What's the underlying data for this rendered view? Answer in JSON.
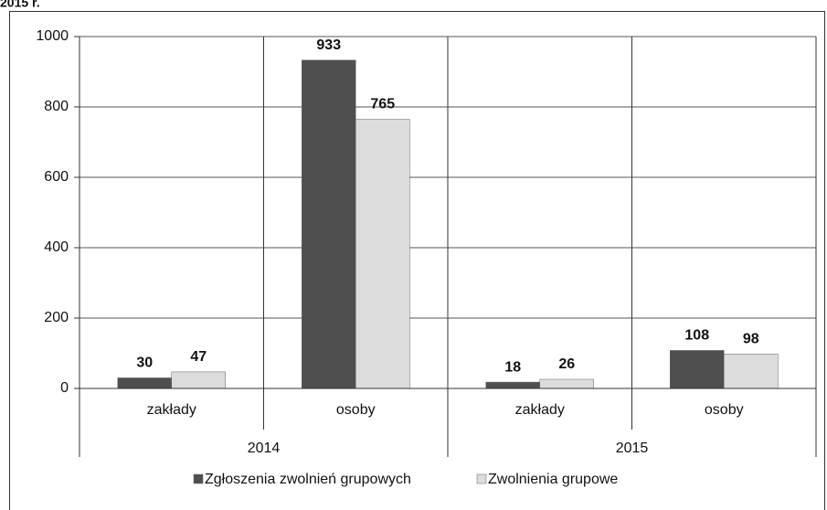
{
  "chart_data": {
    "type": "bar",
    "title": "2015 r.",
    "categories": [
      "zakłady",
      "osoby",
      "zakłady",
      "osoby"
    ],
    "groups": [
      "2014",
      "2015"
    ],
    "series": [
      {
        "name": "Zgłoszenia zwolnień grupowych",
        "color": "#4f4f4f",
        "values": [
          30,
          933,
          18,
          108
        ]
      },
      {
        "name": "Zwolnienia grupowe",
        "color": "#dcdcdc",
        "values": [
          47,
          765,
          26,
          98
        ]
      }
    ],
    "ylim": [
      0,
      1000
    ],
    "yticks": [
      0,
      200,
      400,
      600,
      800,
      1000
    ],
    "grid": true
  }
}
